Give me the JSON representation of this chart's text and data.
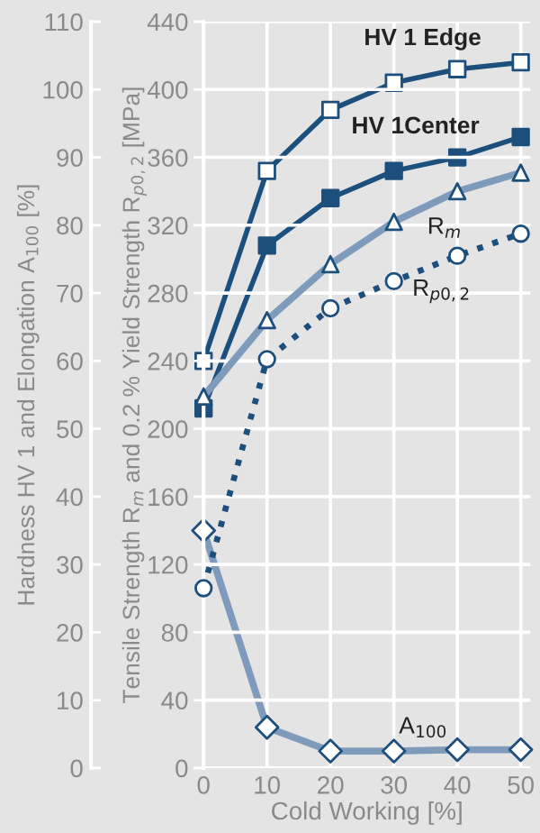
{
  "chart_data": {
    "type": "line",
    "xlabel": "Cold Working [%]",
    "ylabel": "Hardness HV 1 and Elongation A$_{100}$ [%]",
    "y2label": "Tensile Strength R$_{m}$ and 0.2 % Yield Strength R$_{p0,2}$ [MPa]",
    "x": [
      0,
      10,
      20,
      30,
      40,
      50
    ],
    "series": [
      {
        "name": "HV 1 Edge",
        "color": "#1d4f7c",
        "marker": "square",
        "colors": [
          "#ffffff",
          "#ffffff",
          "#ffffff",
          "#ffffff",
          "#ffffff",
          "#ffffff"
        ],
        "line_style": "solid",
        "values": [
          60,
          88,
          97,
          101,
          103,
          104
        ]
      },
      {
        "name": "HV 1Center",
        "color": "#1d4f7c",
        "marker": "square",
        "colors": [
          "#1d4f7c",
          "#1d4f7c",
          "#1d4f7c",
          "#1d4f7c",
          "#1d4f7c",
          "#1d4f7c"
        ],
        "line_style": "solid",
        "values": [
          53,
          77,
          84,
          88,
          90,
          93
        ]
      },
      {
        "name": "R$_{m}$",
        "color": "#7f9bbb",
        "marker": "triangle",
        "colors": [
          "#ffffff",
          "#ffffff",
          "#ffffff",
          "#ffffff",
          "#ffffff",
          "#ffffff"
        ],
        "line_style": "solid",
        "axis": "y2",
        "values": [
          219,
          264,
          297,
          322,
          340,
          351
        ]
      },
      {
        "name": "R$_{p0,2}$",
        "color": "#1d4f7c",
        "marker": "circle",
        "colors": [
          "#ffffff",
          "#ffffff",
          "#ffffff",
          "#ffffff",
          "#ffffff",
          "#ffffff"
        ],
        "line_style": "dotted",
        "axis": "y2",
        "values": [
          106,
          241,
          271,
          287,
          302,
          315
        ]
      },
      {
        "name": "A$_{100}$",
        "color": "#7f9bbb",
        "marker": "diamond",
        "colors": [
          "#ffffff",
          "#ffffff",
          "#ffffff",
          "#ffffff",
          "#ffffff",
          "#ffffff"
        ],
        "line_style": "solid",
        "values": [
          35,
          6,
          2.5,
          2.5,
          2.7,
          2.7
        ]
      }
    ],
    "xlim": [
      0,
      51.5
    ],
    "xticks": [
      0,
      10,
      20,
      30,
      40,
      50
    ],
    "ylim": [
      0,
      110
    ],
    "yticks": [
      0,
      10,
      20,
      30,
      40,
      50,
      60,
      70,
      80,
      90,
      100,
      110
    ],
    "y2lim": [
      0,
      440
    ],
    "y2ticks": [
      0,
      40,
      80,
      120,
      160,
      200,
      240,
      280,
      320,
      360,
      400,
      440
    ],
    "grid": true,
    "legend": false
  }
}
